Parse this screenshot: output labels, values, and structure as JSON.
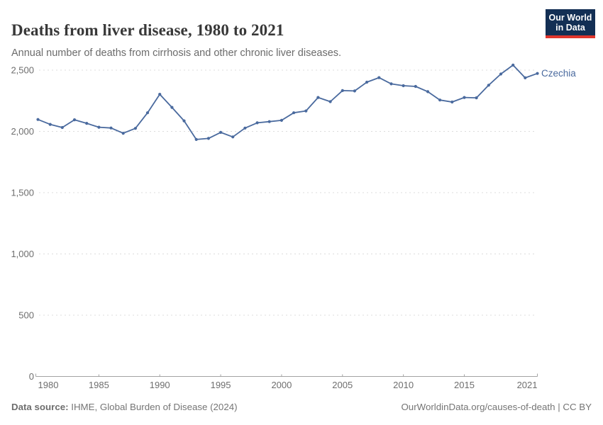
{
  "header": {
    "title": "Deaths from liver disease, 1980 to 2021",
    "subtitle": "Annual number of deaths from cirrhosis and other chronic liver diseases.",
    "logo_line1": "Our World",
    "logo_line2": "in Data"
  },
  "chart_data": {
    "type": "line",
    "title": "Deaths from liver disease, 1980 to 2021",
    "xlabel": "",
    "ylabel": "",
    "xlim": [
      1980,
      2021
    ],
    "ylim": [
      0,
      2500
    ],
    "grid": "horizontal-dashed",
    "legend_position": "end-of-line-label",
    "x_ticks": [
      1980,
      1985,
      1990,
      1995,
      2000,
      2005,
      2010,
      2015,
      2021
    ],
    "y_ticks": [
      0,
      500,
      1000,
      1500,
      2000,
      2500
    ],
    "y_tick_labels": [
      "0",
      "500",
      "1,000",
      "1,500",
      "2,000",
      "2,500"
    ],
    "series": [
      {
        "name": "Czechia",
        "color": "#4a6a9e",
        "years": [
          1980,
          1981,
          1982,
          1983,
          1984,
          1985,
          1986,
          1987,
          1988,
          1989,
          1990,
          1991,
          1992,
          1993,
          1994,
          1995,
          1996,
          1997,
          1998,
          1999,
          2000,
          2001,
          2002,
          2003,
          2004,
          2005,
          2006,
          2007,
          2008,
          2009,
          2010,
          2011,
          2012,
          2013,
          2014,
          2015,
          2016,
          2017,
          2018,
          2019,
          2020,
          2021
        ],
        "values": [
          2097,
          2057,
          2032,
          2095,
          2066,
          2034,
          2028,
          1985,
          2025,
          2152,
          2303,
          2196,
          2086,
          1934,
          1943,
          1992,
          1955,
          2027,
          2070,
          2080,
          2090,
          2152,
          2167,
          2277,
          2243,
          2333,
          2330,
          2402,
          2439,
          2388,
          2373,
          2367,
          2324,
          2256,
          2240,
          2277,
          2274,
          2377,
          2468,
          2541,
          2437,
          2473
        ]
      }
    ]
  },
  "footer": {
    "source_label": "Data source:",
    "source_text": " IHME, Global Burden of Disease (2024)",
    "link_text": "OurWorldinData.org/causes-of-death | CC BY"
  },
  "colors": {
    "line": "#4a6a9e",
    "entity_label": "#4a6a9e",
    "grid": "#dcdcdc",
    "axis": "#a3a3a3",
    "tick_text": "#6e6e6e",
    "logo_bg": "#132f54",
    "logo_stripe": "#e0362c"
  }
}
